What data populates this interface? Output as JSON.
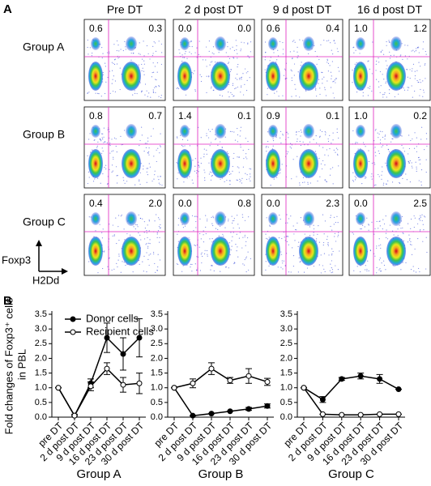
{
  "panel_a": {
    "label": "A",
    "columns": [
      "Pre DT",
      "2 d post DT",
      "9 d post DT",
      "16 d post DT"
    ],
    "rows": [
      {
        "label": "Group A",
        "quadrants": [
          [
            "0.6",
            "0.3"
          ],
          [
            "0.0",
            "0.0"
          ],
          [
            "0.6",
            "0.4"
          ],
          [
            "1.0",
            "1.2"
          ]
        ]
      },
      {
        "label": "Group B",
        "quadrants": [
          [
            "0.8",
            "0.7"
          ],
          [
            "1.4",
            "0.1"
          ],
          [
            "0.9",
            "0.1"
          ],
          [
            "1.0",
            "0.2"
          ]
        ]
      },
      {
        "label": "Group C",
        "quadrants": [
          [
            "0.4",
            "2.0"
          ],
          [
            "0.0",
            "0.8"
          ],
          [
            "0.0",
            "2.3"
          ],
          [
            "0.0",
            "2.5"
          ]
        ]
      }
    ],
    "y_axis_label": "Foxp3",
    "x_axis_label": "H2Dd"
  },
  "panel_b": {
    "label": "B",
    "y_label": [
      "Fold changes of Foxp3⁺ cells",
      "in PBL"
    ]
  },
  "chart_data": [
    {
      "type": "line",
      "x_label": "Group A",
      "categories": [
        "pre DT",
        "2 d post DT",
        "9 d post DT",
        "16 d post DT",
        "23 d post DT",
        "30 d post DT"
      ],
      "ylim": [
        0,
        3.5
      ],
      "yticks": [
        {
          "value": 0,
          "label": "0.0"
        },
        {
          "value": 0.5,
          "label": "0.5"
        },
        {
          "value": 1,
          "label": "1.0"
        },
        {
          "value": 1.5,
          "label": "1.5"
        },
        {
          "value": 2,
          "label": "2.0"
        },
        {
          "value": 2.5,
          "label": "2.5"
        },
        {
          "value": 3,
          "label": "3.0"
        },
        {
          "value": 3.5,
          "label": "3.5"
        }
      ],
      "series": [
        {
          "name": "Donor cells",
          "color": "#000000",
          "values": [
            1.0,
            0.05,
            1.15,
            2.7,
            2.15,
            2.7
          ],
          "errors": [
            0,
            0.05,
            0.15,
            0.5,
            0.55,
            0.65
          ]
        },
        {
          "name": "Recipient cells",
          "color": "#ffffff",
          "values": [
            1.0,
            0.05,
            1.05,
            1.65,
            1.1,
            1.15
          ],
          "errors": [
            0,
            0,
            0.15,
            0.2,
            0.25,
            0.35
          ]
        }
      ]
    },
    {
      "type": "line",
      "x_label": "Group B",
      "categories": [
        "pre DT",
        "2 d post DT",
        "9 d post DT",
        "16 d post DT",
        "23 d post DT",
        "30 d post DT"
      ],
      "ylim": [
        0,
        3.5
      ],
      "yticks": [
        {
          "value": 0,
          "label": "0.0"
        },
        {
          "value": 0.5,
          "label": "0.5"
        },
        {
          "value": 1,
          "label": "1.0"
        },
        {
          "value": 1.5,
          "label": "1.5"
        },
        {
          "value": 2,
          "label": "2.0"
        },
        {
          "value": 2.5,
          "label": "2.5"
        },
        {
          "value": 3,
          "label": "3.0"
        },
        {
          "value": 3.5,
          "label": "3.5"
        }
      ],
      "series": [
        {
          "color": "#000000",
          "values": [
            1.0,
            0.05,
            0.12,
            0.2,
            0.28,
            0.38
          ],
          "errors": [
            0,
            0,
            0,
            0,
            0.05,
            0.07
          ]
        },
        {
          "color": "#ffffff",
          "values": [
            1.0,
            1.15,
            1.65,
            1.25,
            1.4,
            1.2
          ],
          "errors": [
            0,
            0.15,
            0.2,
            0.1,
            0.25,
            0.12
          ]
        }
      ]
    },
    {
      "type": "line",
      "x_label": "Group C",
      "categories": [
        "pre DT",
        "2 d post DT",
        "9 d post DT",
        "16 d post DT",
        "23 d post DT",
        "30 d post DT"
      ],
      "ylim": [
        0,
        3.5
      ],
      "yticks": [
        {
          "value": 0,
          "label": "0.0"
        },
        {
          "value": 0.5,
          "label": "0.5"
        },
        {
          "value": 1,
          "label": "1.0"
        },
        {
          "value": 1.5,
          "label": "1.5"
        },
        {
          "value": 2,
          "label": "2.0"
        },
        {
          "value": 2.5,
          "label": "2.5"
        },
        {
          "value": 3,
          "label": "3.0"
        },
        {
          "value": 3.5,
          "label": "3.5"
        }
      ],
      "series": [
        {
          "color": "#000000",
          "values": [
            1.0,
            0.6,
            1.3,
            1.4,
            1.3,
            0.95
          ],
          "errors": [
            0,
            0.1,
            0.05,
            0.1,
            0.15,
            0
          ]
        },
        {
          "color": "#ffffff",
          "values": [
            1.0,
            0.1,
            0.08,
            0.08,
            0.1,
            0.1
          ],
          "errors": [
            0,
            0,
            0,
            0,
            0,
            0
          ]
        }
      ]
    }
  ]
}
